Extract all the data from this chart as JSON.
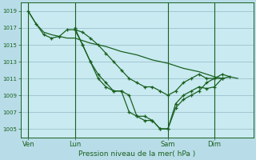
{
  "title": "Pression niveau de la mer( hPa )",
  "background_color": "#b8dde8",
  "plot_bg_color": "#c8eaf0",
  "grid_color": "#9dbfcc",
  "line_color": "#1a6020",
  "ylim": [
    1004,
    1020
  ],
  "yticks": [
    1005,
    1007,
    1009,
    1011,
    1013,
    1015,
    1017,
    1019
  ],
  "day_labels": [
    "Ven",
    "Lun",
    "Sam",
    "Dim"
  ],
  "day_positions": [
    1,
    7,
    19,
    25
  ],
  "vline_positions": [
    1,
    7,
    19,
    25
  ],
  "xlim": [
    0,
    30
  ],
  "line1_nomarker": {
    "x": [
      1,
      2,
      3,
      4,
      5,
      6,
      7,
      8,
      9,
      10,
      11,
      12,
      13,
      14,
      15,
      16,
      17,
      18,
      19,
      20,
      21,
      22,
      23,
      24,
      25,
      26,
      27,
      28
    ],
    "y": [
      1019,
      1017.5,
      1016.5,
      1016.2,
      1016,
      1015.8,
      1015.8,
      1015.5,
      1015.2,
      1015,
      1014.8,
      1014.5,
      1014.2,
      1014,
      1013.8,
      1013.5,
      1013.2,
      1013,
      1012.8,
      1012.5,
      1012.2,
      1012,
      1011.8,
      1011.5,
      1011.2,
      1011.0,
      1011.2,
      1011.0
    ]
  },
  "line2_marker": {
    "x": [
      1,
      2,
      3,
      4,
      5,
      6,
      7,
      8,
      9,
      10,
      11,
      12,
      13,
      14,
      15,
      16,
      17,
      18,
      19,
      20,
      21,
      22,
      23,
      24,
      25,
      26
    ],
    "y": [
      1019,
      1017.5,
      1016.2,
      1015.8,
      1016,
      1016.8,
      1016.8,
      1016.5,
      1015.8,
      1015,
      1014,
      1013,
      1012,
      1011,
      1010.5,
      1010,
      1010,
      1009.5,
      1009,
      1009.5,
      1010.5,
      1011,
      1011.5,
      1011,
      1011,
      1011
    ]
  },
  "line3_marker": {
    "x": [
      7,
      8,
      9,
      10,
      11,
      12,
      13,
      14,
      15,
      16,
      17,
      18,
      19,
      20,
      21,
      22,
      23,
      24,
      25,
      26
    ],
    "y": [
      1016.8,
      1015,
      1013,
      1011.5,
      1010.5,
      1009.5,
      1009.5,
      1009,
      1006.5,
      1006.5,
      1006,
      1005,
      1005,
      1008,
      1009,
      1009.5,
      1010,
      1009.8,
      1010,
      1011
    ]
  },
  "line4_marker": {
    "x": [
      7,
      8,
      9,
      10,
      11,
      12,
      13,
      14,
      15,
      16,
      17,
      18,
      19,
      20,
      21,
      22,
      23,
      24,
      25,
      26,
      27
    ],
    "y": [
      1017,
      1015,
      1013,
      1011,
      1010,
      1009.5,
      1009.5,
      1007,
      1006.5,
      1006,
      1006,
      1005,
      1005,
      1007.5,
      1008.5,
      1009,
      1009.5,
      1010.5,
      1011,
      1011.5,
      1011.2
    ]
  }
}
